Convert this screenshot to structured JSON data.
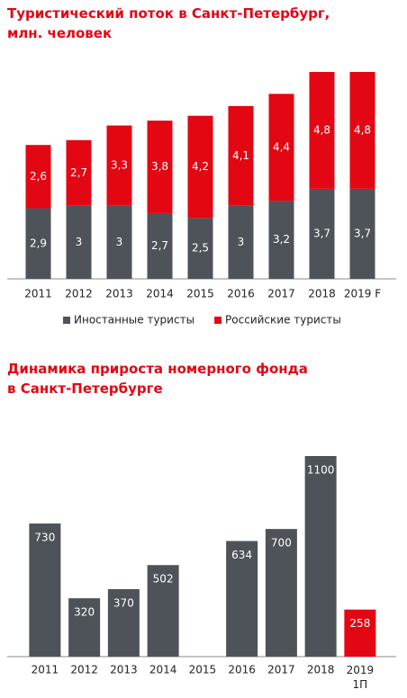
{
  "chart_data": [
    {
      "type": "stacked_bar",
      "title": [
        "Туристический поток в Санкт-Петербург,",
        "млн. человек"
      ],
      "categories": [
        "2011",
        "2012",
        "2013",
        "2014",
        "2015",
        "2016",
        "2017",
        "2018",
        "2019 F"
      ],
      "series": [
        {
          "name": "Иностанные туристы",
          "color": "#4d5358",
          "values": [
            2.9,
            3,
            3,
            2.7,
            2.5,
            3,
            3.2,
            3.7,
            3.7
          ],
          "value_labels": [
            "2,9",
            "3",
            "3",
            "2,7",
            "2,5",
            "3",
            "3,2",
            "3,7",
            "3,7"
          ]
        },
        {
          "name": "Российские туристы",
          "color": "#e30613",
          "values": [
            2.6,
            2.7,
            3.3,
            3.8,
            4.2,
            4.1,
            4.4,
            4.8,
            4.8
          ],
          "value_labels": [
            "2,6",
            "2,7",
            "3,3",
            "3,8",
            "4,2",
            "4,1",
            "4,4",
            "4,8",
            "4,8"
          ]
        }
      ],
      "legend": "bottom"
    },
    {
      "type": "bar",
      "title": [
        "Динамика прироста номерного фонда",
        "в Санкт-Петербурге"
      ],
      "categories": [
        "2011",
        "2012",
        "2013",
        "2014",
        "2015",
        "2016",
        "2017",
        "2018",
        "2019 1П"
      ],
      "values": [
        730,
        320,
        370,
        502,
        null,
        634,
        700,
        1100,
        258
      ],
      "colors": [
        "#4d5358",
        "#4d5358",
        "#4d5358",
        "#4d5358",
        "#4d5358",
        "#4d5358",
        "#4d5358",
        "#4d5358",
        "#e30613"
      ]
    }
  ]
}
